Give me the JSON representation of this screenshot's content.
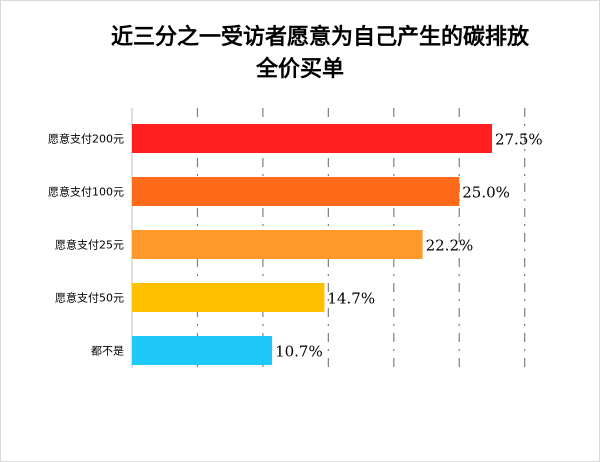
{
  "title_lines": [
    "近三分之一受访者愿意为自己产生的碳排放",
    "全价买单"
  ],
  "chart_data": {
    "type": "bar",
    "orientation": "horizontal",
    "title": "近三分之一受访者愿意为自己产生的碳排放全价买单",
    "categories": [
      "愿意支付200元",
      "愿意支付100元",
      "愿意支付25元",
      "愿意支付50元",
      "都不是"
    ],
    "values": [
      27.5,
      25.0,
      22.2,
      14.7,
      10.7
    ],
    "value_labels": [
      "27.5%",
      "25.0%",
      "22.2%",
      "14.7%",
      "10.7%"
    ],
    "colors": [
      "#ff1f1f",
      "#ff6a1a",
      "#ff9a2a",
      "#ffc000",
      "#1ec8f8"
    ],
    "xlim": [
      0,
      30
    ],
    "grid": "vertical dashed",
    "legend": "none"
  }
}
